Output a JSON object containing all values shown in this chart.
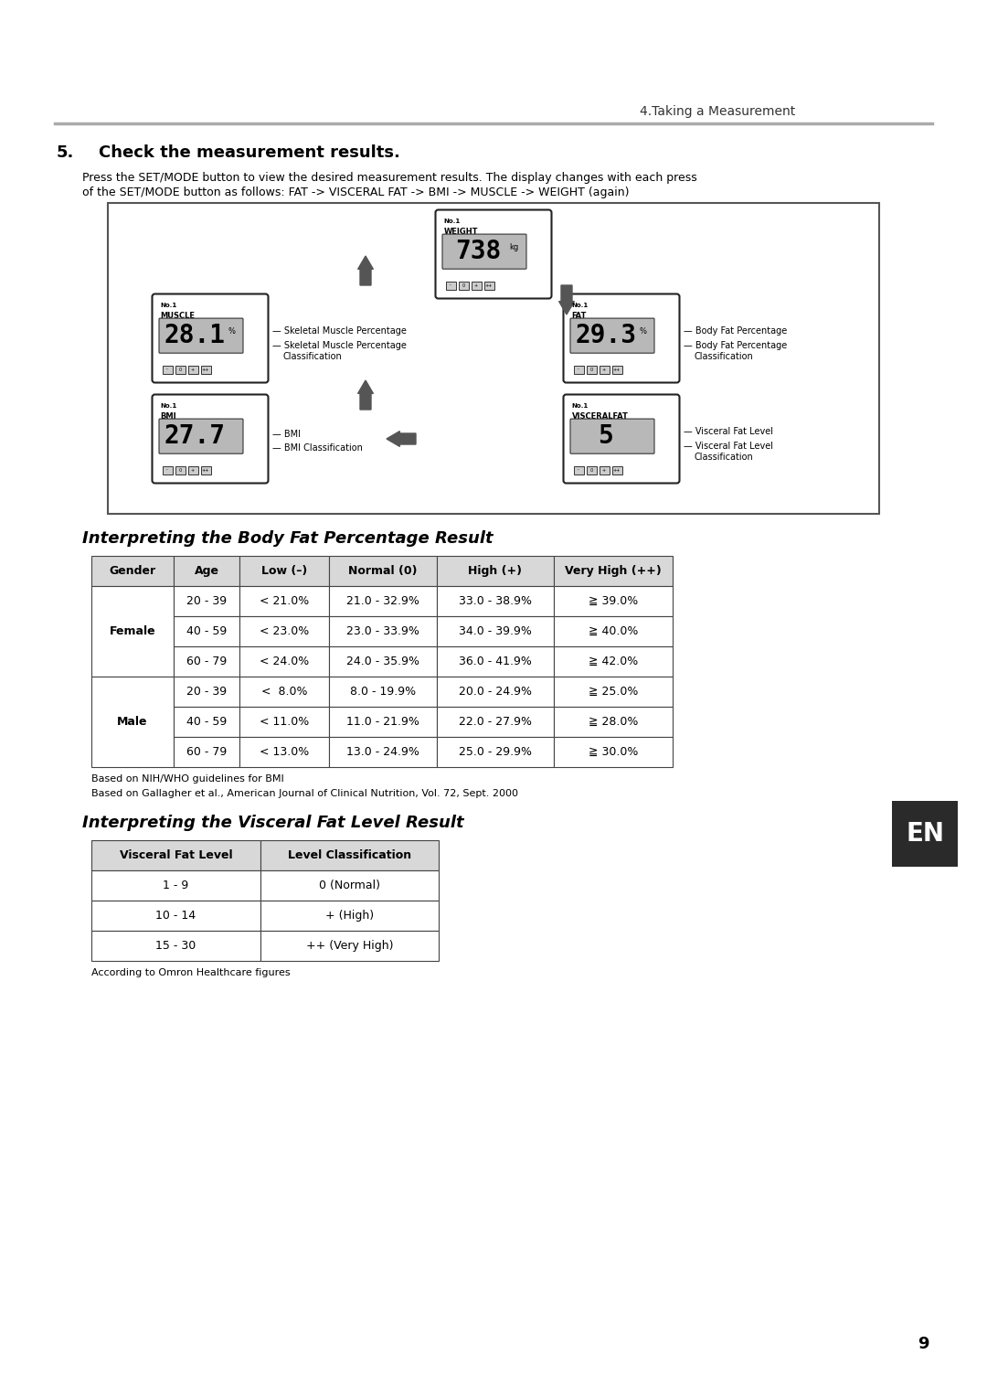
{
  "page_header": "4.Taking a Measurement",
  "section_number": "5.",
  "section_title": "Check the measurement results.",
  "section_desc_line1": "Press the SET/MODE button to view the desired measurement results. The display changes with each press",
  "section_desc_line2": "of the SET/MODE button as follows: FAT -> VISCERAL FAT -> BMI -> MUSCLE -> WEIGHT (again)",
  "bfp_title": "Interpreting the Body Fat Percentage Result",
  "bfp_headers": [
    "Gender",
    "Age",
    "Low (–)",
    "Normal (0)",
    "High (+)",
    "Very High (++)"
  ],
  "bfp_data": [
    [
      "Female",
      "20 - 39",
      "< 21.0%",
      "21.0 - 32.9%",
      "33.0 - 38.9%",
      "≧ 39.0%"
    ],
    [
      "Female",
      "40 - 59",
      "< 23.0%",
      "23.0 - 33.9%",
      "34.0 - 39.9%",
      "≧ 40.0%"
    ],
    [
      "Female",
      "60 - 79",
      "< 24.0%",
      "24.0 - 35.9%",
      "36.0 - 41.9%",
      "≧ 42.0%"
    ],
    [
      "Male",
      "20 - 39",
      "<  8.0%",
      "8.0 - 19.9%",
      "20.0 - 24.9%",
      "≧ 25.0%"
    ],
    [
      "Male",
      "40 - 59",
      "< 11.0%",
      "11.0 - 21.9%",
      "22.0 - 27.9%",
      "≧ 28.0%"
    ],
    [
      "Male",
      "60 - 79",
      "< 13.0%",
      "13.0 - 24.9%",
      "25.0 - 29.9%",
      "≧ 30.0%"
    ]
  ],
  "bfp_footnote1": "Based on NIH/WHO guidelines for BMI",
  "bfp_footnote2": "Based on Gallagher et al., American Journal of Clinical Nutrition, Vol. 72, Sept. 2000",
  "vfl_title": "Interpreting the Visceral Fat Level Result",
  "vfl_headers": [
    "Visceral Fat Level",
    "Level Classification"
  ],
  "vfl_data": [
    [
      "1 - 9",
      "0 (Normal)"
    ],
    [
      "10 - 14",
      "+ (High)"
    ],
    [
      "15 - 30",
      "++ (Very High)"
    ]
  ],
  "vfl_footnote": "According to Omron Healthcare figures",
  "en_label": "EN",
  "page_number": "9",
  "bg_color": "#ffffff"
}
